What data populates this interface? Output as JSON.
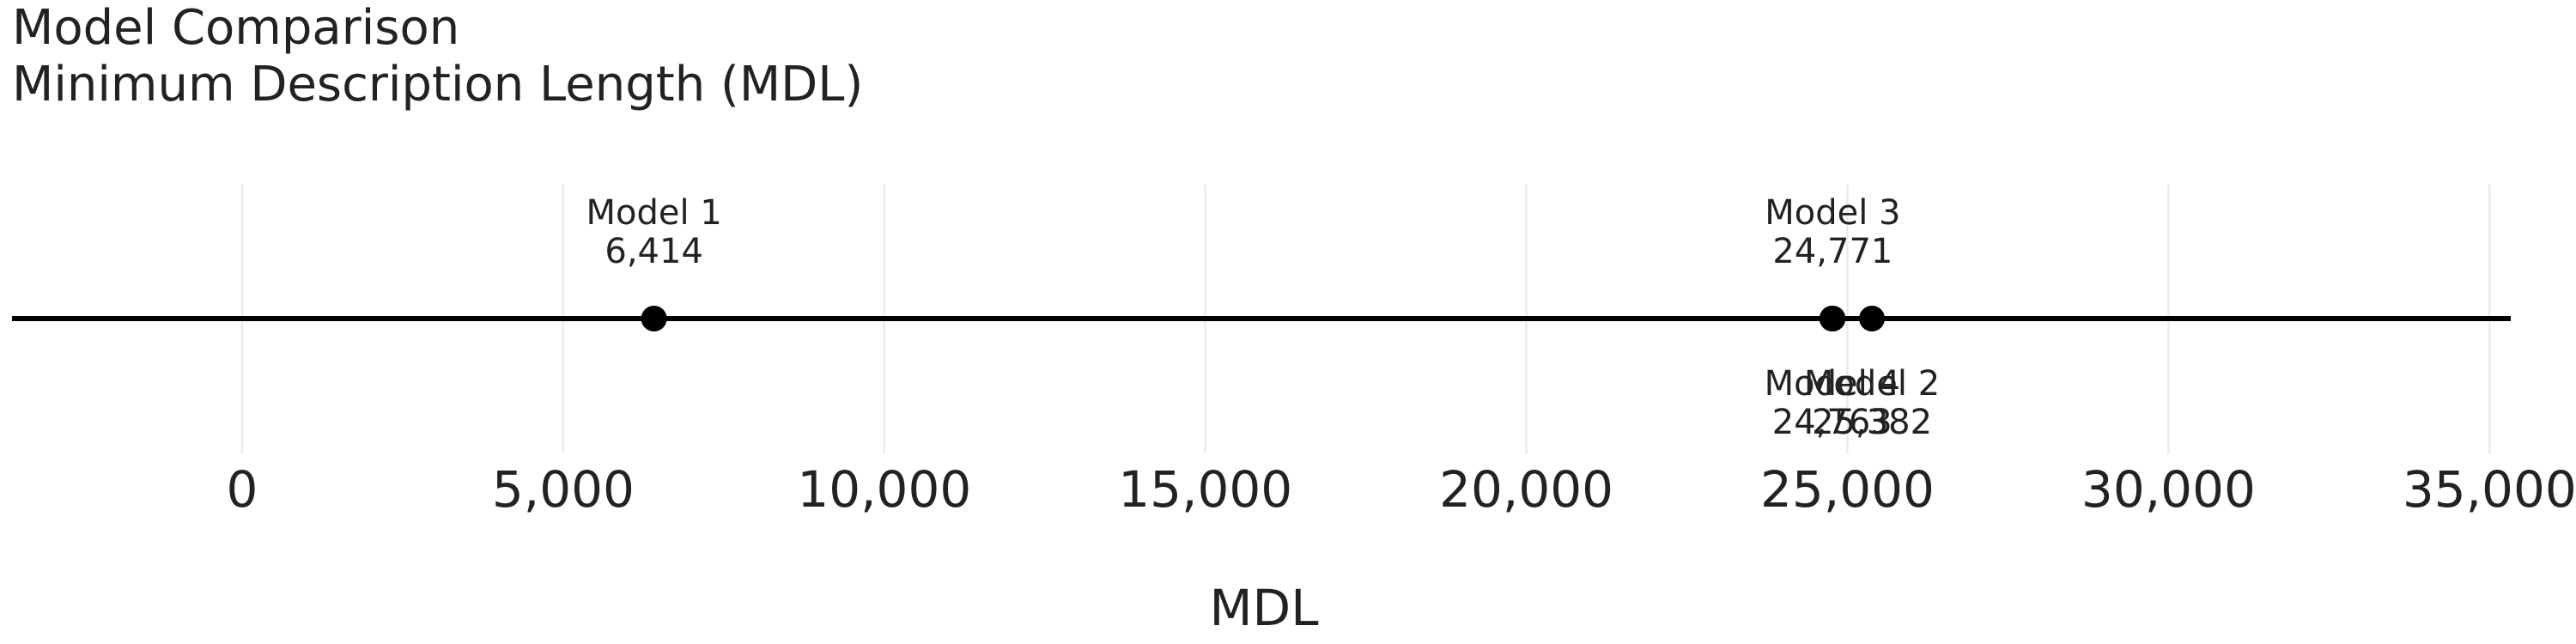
{
  "chart_data": {
    "type": "scatter",
    "title": "Model Comparison",
    "subtitle": "Minimum Description Length (MDL)",
    "xlabel": "MDL",
    "ylabel": "",
    "xlim": [
      -3600,
      35400
    ],
    "xticks": [
      0,
      5000,
      10000,
      15000,
      20000,
      25000,
      30000,
      35000
    ],
    "xtick_labels": [
      "0",
      "5,000",
      "10,000",
      "15,000",
      "20,000",
      "25,000",
      "30,000",
      "35,000"
    ],
    "grid": true,
    "points": [
      {
        "name": "Model 1",
        "value": 6414,
        "value_label": "6,414",
        "label_position": "above"
      },
      {
        "name": "Model 2",
        "value": 25382,
        "value_label": "25,382",
        "label_position": "below"
      },
      {
        "name": "Model 3",
        "value": 24771,
        "value_label": "24,771",
        "label_position": "above"
      },
      {
        "name": "Model 4",
        "value": 24763,
        "value_label": "24,763",
        "label_position": "below"
      }
    ],
    "colors": {
      "points": "#000000",
      "line": "#000000",
      "grid": "#ebebeb",
      "text": "#222222"
    }
  }
}
